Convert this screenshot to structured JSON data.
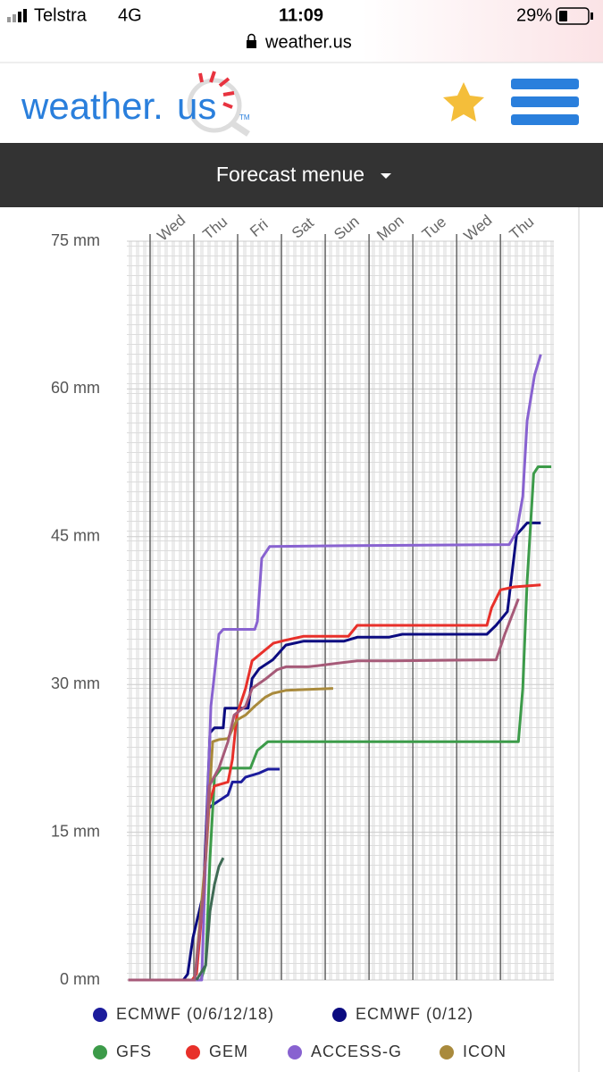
{
  "status": {
    "carrier": "Telstra",
    "network": "4G",
    "time": "11:09",
    "battery": "29%",
    "url": "weather.us"
  },
  "header": {
    "logo": "weather.",
    "logo_accent": "us",
    "logo_mark": "TM"
  },
  "menu": {
    "label": "Forecast menue"
  },
  "chart_data": {
    "type": "line",
    "xlim": [
      -0.53,
      9.22
    ],
    "xticks": [
      {
        "value": 0,
        "label": "Wed"
      },
      {
        "value": 1,
        "label": "Thu"
      },
      {
        "value": 2,
        "label": "Fri"
      },
      {
        "value": 3,
        "label": "Sat"
      },
      {
        "value": 4,
        "label": "Sun"
      },
      {
        "value": 5,
        "label": "Mon"
      },
      {
        "value": 6,
        "label": "Tue"
      },
      {
        "value": 7,
        "label": "Wed"
      },
      {
        "value": 8,
        "label": "Thu"
      }
    ],
    "ylim": [
      0,
      75
    ],
    "yticks": [
      {
        "value": 0,
        "label": "0 mm"
      },
      {
        "value": 15,
        "label": "15 mm"
      },
      {
        "value": 30,
        "label": "30 mm"
      },
      {
        "value": 45,
        "label": "45 mm"
      },
      {
        "value": 60,
        "label": "60 mm"
      },
      {
        "value": 75,
        "label": "75 mm"
      }
    ],
    "series": [
      {
        "name": "ECMWF (0/6/12/18)",
        "color": "#1c1c9c",
        "x": [
          -0.5,
          1.02,
          1.22,
          1.33,
          1.47,
          1.78,
          1.88,
          2.08,
          2.18,
          2.49,
          2.69,
          2.96
        ],
        "values": [
          0,
          0,
          8.8,
          17.4,
          17.9,
          18.8,
          20.1,
          20.1,
          20.6,
          21.0,
          21.4,
          21.4
        ]
      },
      {
        "name": "ECMWF (0/12)",
        "color": "#0b0b80",
        "x": [
          -0.5,
          0.76,
          0.86,
          0.98,
          1.22,
          1.37,
          1.47,
          1.67,
          1.71,
          2.24,
          2.33,
          2.49,
          2.8,
          3.1,
          3.51,
          4.43,
          4.73,
          5.45,
          5.76,
          7.69,
          7.9,
          8.16,
          8.37,
          8.61,
          8.92
        ],
        "values": [
          0,
          0,
          0.6,
          4.3,
          8.8,
          25.1,
          25.6,
          25.6,
          27.6,
          27.6,
          30.6,
          31.6,
          32.5,
          34.0,
          34.4,
          34.4,
          34.8,
          34.8,
          35.1,
          35.1,
          36.0,
          37.4,
          45.2,
          46.4,
          46.4
        ]
      },
      {
        "name": "GFS",
        "color": "#3c9b49",
        "x": [
          -0.5,
          1.16,
          1.27,
          1.37,
          1.47,
          1.63,
          2.29,
          2.45,
          2.69,
          8.41,
          8.51,
          8.61,
          8.76,
          8.86,
          9.16
        ],
        "values": [
          0,
          0,
          1.5,
          12.4,
          20.6,
          21.5,
          21.5,
          23.3,
          24.2,
          24.2,
          29.6,
          40.5,
          51.4,
          52.1,
          52.1
        ]
      },
      {
        "name": "GEM",
        "color": "#e8302a",
        "x": [
          -0.5,
          0.96,
          1.06,
          1.22,
          1.35,
          1.47,
          1.78,
          1.88,
          1.98,
          2.18,
          2.33,
          2.82,
          3.1,
          3.51,
          4.53,
          4.73,
          7.69,
          7.8,
          8.0,
          8.31,
          8.92
        ],
        "values": [
          0,
          0,
          0.6,
          8.8,
          17.9,
          19.7,
          20.1,
          22.4,
          26.9,
          29.6,
          32.4,
          34.2,
          34.5,
          34.9,
          34.9,
          36.0,
          36.0,
          37.8,
          39.6,
          39.9,
          40.1
        ]
      },
      {
        "name": "ACCESS-G",
        "color": "#8862d0",
        "x": [
          -0.5,
          1.18,
          1.31,
          1.39,
          1.57,
          1.67,
          2.39,
          2.45,
          2.55,
          2.73,
          4.73,
          8.2,
          8.37,
          8.51,
          8.61,
          8.78,
          8.92
        ],
        "values": [
          0,
          0,
          17.9,
          27.8,
          35.1,
          35.6,
          35.6,
          36.4,
          42.8,
          44.0,
          44.1,
          44.2,
          45.5,
          49.1,
          56.8,
          61.4,
          63.5
        ]
      },
      {
        "name": "ICON",
        "color": "#a98a3c",
        "x": [
          -0.5,
          1.02,
          1.27,
          1.43,
          1.57,
          1.78,
          1.98,
          2.18,
          2.39,
          2.63,
          2.8,
          3.1,
          4.18
        ],
        "values": [
          0,
          0,
          12.4,
          24.2,
          24.4,
          24.5,
          26.4,
          26.9,
          27.8,
          28.7,
          29.1,
          29.4,
          29.6
        ]
      },
      {
        "color": "#a65a78",
        "x": [
          -0.5,
          1.02,
          1.22,
          1.35,
          1.57,
          1.78,
          1.92,
          2.18,
          2.33,
          2.65,
          2.9,
          3.1,
          3.61,
          3.82,
          4.73,
          5.55,
          7.9,
          8.1,
          8.41
        ],
        "values": [
          0,
          0,
          8.8,
          19.7,
          21.5,
          24.2,
          26.9,
          27.8,
          29.6,
          30.6,
          31.5,
          31.8,
          31.8,
          31.9,
          32.4,
          32.4,
          32.5,
          35.1,
          38.7
        ]
      },
      {
        "color": "#3f6b55",
        "x": [
          1.06,
          1.27,
          1.37,
          1.47,
          1.57,
          1.67
        ],
        "values": [
          0,
          1.5,
          7.0,
          9.7,
          11.5,
          12.4
        ]
      }
    ]
  }
}
